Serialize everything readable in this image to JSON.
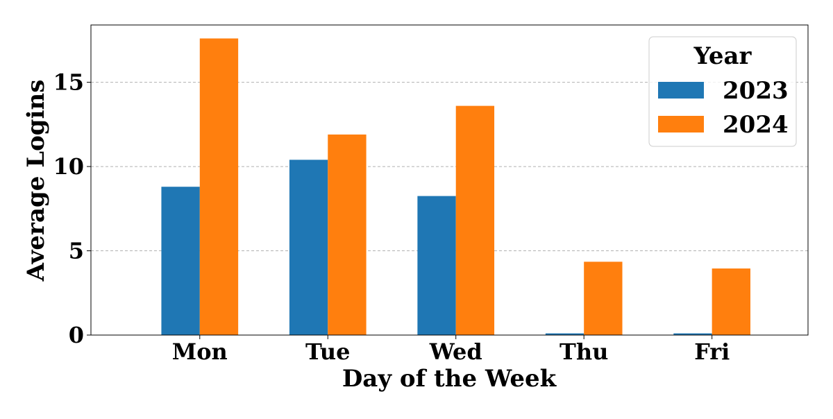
{
  "chart_data": {
    "type": "bar",
    "title": "",
    "xlabel": "Day of the Week",
    "ylabel": "Average Logins",
    "categories": [
      "Mon",
      "Tue",
      "Wed",
      "Thu",
      "Fri"
    ],
    "series": [
      {
        "name": "2023",
        "color": "#1f77b4",
        "values": [
          8.8,
          10.4,
          8.25,
          0.1,
          0.1
        ]
      },
      {
        "name": "2024",
        "color": "#ff7f0e",
        "values": [
          17.6,
          11.9,
          13.6,
          4.35,
          3.95
        ]
      }
    ],
    "ylim": [
      0,
      18.4
    ],
    "yticks": [
      0,
      5,
      10,
      15
    ],
    "grid": {
      "y": true,
      "x": false
    },
    "legend": {
      "title": "Year",
      "position": "top-right"
    }
  }
}
